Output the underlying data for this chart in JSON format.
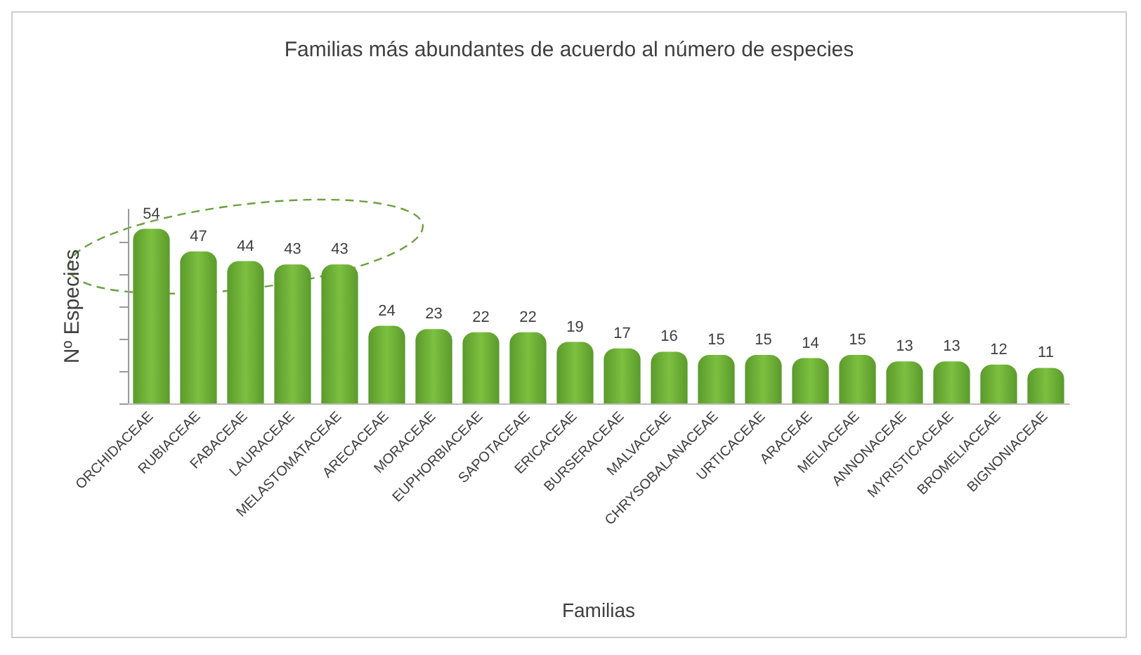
{
  "chart_data": {
    "type": "bar",
    "title": "Familias más abundantes de acuerdo al número de especies",
    "xlabel": "Familias",
    "ylabel": "Nº Especies",
    "categories": [
      "ORCHIDACEAE",
      "RUBIACEAE",
      "FABACEAE",
      "LAURACEAE",
      "MELASTOMATACEAE",
      "ARECACEAE",
      "MORACEAE",
      "EUPHORBIACEAE",
      "SAPOTACEAE",
      "ERICACEAE",
      "BURSERACEAE",
      "MALVACEAE",
      "CHRYSOBALANACEAE",
      "URTICACEAE",
      "ARACEAE",
      "MELIACEAE",
      "ANNONACEAE",
      "MYRISTICACEAE",
      "BROMELIACEAE",
      "BIGNONIACEAE"
    ],
    "values": [
      54,
      47,
      44,
      43,
      43,
      24,
      23,
      22,
      22,
      19,
      17,
      16,
      15,
      15,
      14,
      15,
      13,
      13,
      12,
      11
    ],
    "color": "#5b9a2c",
    "data_labels": true,
    "ylim": [
      0,
      60
    ],
    "yticks": [
      {
        "value": 0,
        "label": null
      },
      {
        "value": 10,
        "label": null
      },
      {
        "value": 20,
        "label": null
      },
      {
        "value": 30,
        "label": null
      },
      {
        "value": 40,
        "label": null
      },
      {
        "value": 50,
        "label": null
      }
    ],
    "tick_labels": "x"
  }
}
